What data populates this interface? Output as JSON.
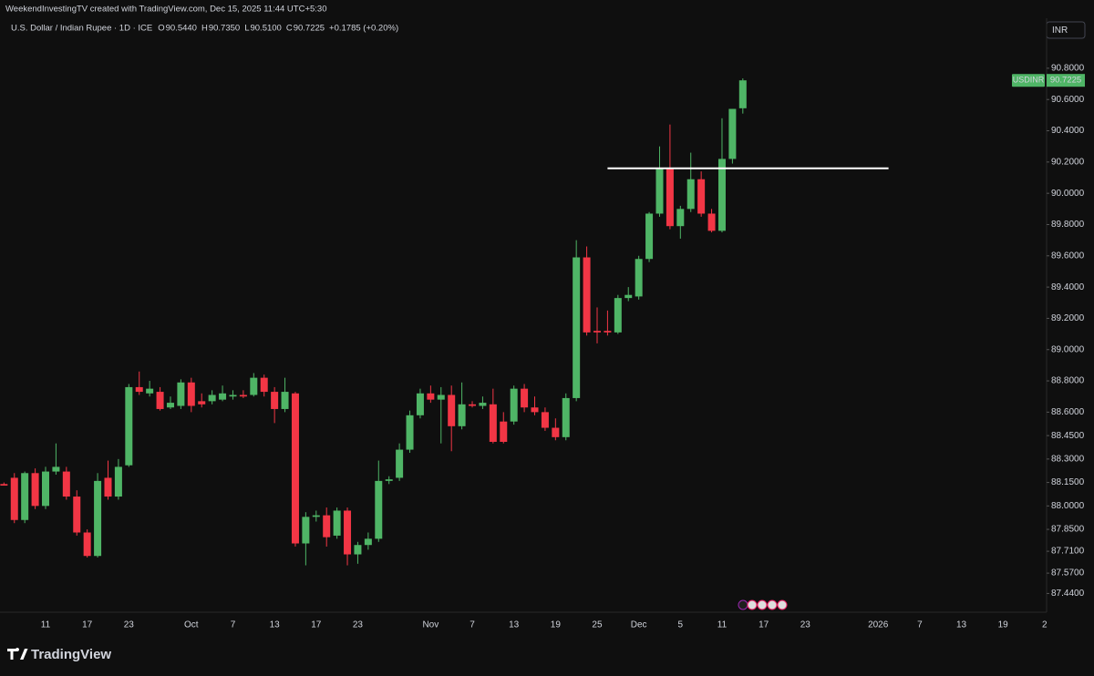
{
  "chart_data": {
    "type": "candlestick",
    "credit": "WeekendInvestingTV created with TradingView.com, Dec 15, 2025 11:44 UTC+5:30",
    "title": "U.S. Dollar / Indian Rupee · 1D · ICE",
    "ohlc_legend": [
      {
        "key": "O",
        "value": "90.5440"
      },
      {
        "key": "H",
        "value": "90.7350"
      },
      {
        "key": "L",
        "value": "90.5100"
      },
      {
        "key": "C",
        "value": "90.7225"
      }
    ],
    "change": "+0.1785 (+0.20%)",
    "currency": "INR",
    "symbol": "USDINR",
    "brand": "TradingView",
    "up_color": "#4fb566",
    "down_color": "#f23645",
    "level": {
      "value": 90.16,
      "x": [
        58,
        85
      ],
      "color": "#ffffff"
    },
    "categories": [
      null,
      null,
      null,
      null,
      "11",
      null,
      null,
      null,
      "17",
      null,
      null,
      null,
      "23",
      null,
      null,
      null,
      null,
      null,
      "Oct",
      null,
      null,
      null,
      "7",
      null,
      null,
      null,
      "13",
      null,
      null,
      null,
      "17",
      null,
      null,
      null,
      "23",
      null,
      null,
      null,
      null,
      null,
      null,
      "Nov",
      null,
      null,
      null,
      "7",
      null,
      null,
      null,
      "13",
      null,
      null,
      null,
      "19",
      null,
      null,
      null,
      "25",
      null,
      null,
      null,
      "Dec",
      null,
      null,
      null,
      "5",
      null,
      null,
      null,
      "11",
      null,
      null,
      null,
      "17",
      null,
      null,
      null,
      "23",
      null,
      null,
      null,
      null,
      null,
      null,
      "2026",
      null,
      null,
      null,
      "7",
      null,
      null,
      null,
      "13",
      null,
      null,
      null,
      "19",
      null,
      null,
      null,
      "2"
    ],
    "open": [
      88.14,
      88.18,
      87.91,
      88.21,
      88.0,
      88.22,
      88.22,
      88.06,
      87.83,
      87.68,
      88.18,
      88.06,
      88.26,
      88.76,
      88.72,
      88.73,
      88.63,
      88.64,
      88.79,
      88.67,
      88.67,
      88.68,
      88.7,
      88.71,
      88.71,
      88.82,
      88.73,
      88.62,
      88.72,
      87.76,
      87.93,
      87.94,
      87.81,
      87.97,
      87.69,
      87.75,
      87.79,
      88.16,
      88.18,
      88.36,
      88.58,
      88.72,
      88.68,
      88.71,
      88.51,
      88.65,
      88.64,
      88.65,
      88.54,
      88.54,
      88.75,
      88.63,
      88.6,
      88.5,
      88.44,
      88.69,
      89.59,
      89.12,
      89.12,
      89.11,
      89.33,
      89.34,
      89.58,
      89.87,
      90.16,
      89.79,
      89.9,
      90.09,
      89.87,
      89.76,
      90.22,
      90.544,
      null,
      null,
      null,
      null,
      null,
      null,
      null,
      null,
      null,
      null,
      null,
      null,
      null,
      null,
      null,
      null,
      null,
      null,
      null,
      null,
      null,
      null,
      null,
      null,
      null,
      null,
      null,
      null,
      null
    ],
    "high": [
      88.15,
      88.21,
      88.22,
      88.24,
      88.25,
      88.4,
      88.25,
      88.1,
      87.85,
      88.21,
      88.29,
      88.3,
      88.78,
      88.86,
      88.8,
      88.76,
      88.7,
      88.81,
      88.82,
      88.72,
      88.74,
      88.77,
      88.74,
      88.74,
      88.85,
      88.84,
      88.76,
      88.82,
      88.73,
      87.96,
      87.97,
      87.99,
      87.99,
      87.99,
      87.77,
      87.83,
      88.29,
      88.19,
      88.4,
      88.61,
      88.75,
      88.77,
      88.76,
      88.77,
      88.79,
      88.67,
      88.7,
      88.75,
      88.6,
      88.77,
      88.78,
      88.7,
      88.63,
      88.56,
      88.72,
      89.7,
      89.66,
      89.27,
      89.25,
      89.35,
      89.4,
      89.6,
      89.88,
      90.3,
      90.44,
      89.92,
      90.26,
      90.14,
      89.9,
      90.48,
      90.54,
      90.735,
      null,
      null,
      null,
      null,
      null,
      null,
      null,
      null,
      null,
      null,
      null,
      null,
      null,
      null,
      null,
      null,
      null,
      null,
      null,
      null,
      null,
      null,
      null,
      null,
      null,
      null,
      null,
      null,
      null
    ],
    "low": [
      88.13,
      87.89,
      87.89,
      87.98,
      87.98,
      88.2,
      88.04,
      87.81,
      87.67,
      87.67,
      88.04,
      88.04,
      88.25,
      88.71,
      88.7,
      88.61,
      88.62,
      88.62,
      88.6,
      88.63,
      88.65,
      88.67,
      88.68,
      88.69,
      88.7,
      88.7,
      88.53,
      88.6,
      87.74,
      87.62,
      87.9,
      87.74,
      87.79,
      87.62,
      87.63,
      87.72,
      87.77,
      88.14,
      88.16,
      88.34,
      88.56,
      88.66,
      88.4,
      88.35,
      88.49,
      88.63,
      88.62,
      88.4,
      88.4,
      88.52,
      88.6,
      88.58,
      88.48,
      88.42,
      88.42,
      88.67,
      89.09,
      89.04,
      89.09,
      89.1,
      89.31,
      89.32,
      89.56,
      89.85,
      89.77,
      89.71,
      89.88,
      89.85,
      89.75,
      89.75,
      90.19,
      90.51,
      null,
      null,
      null,
      null,
      null,
      null,
      null,
      null,
      null,
      null,
      null,
      null,
      null,
      null,
      null,
      null,
      null,
      null,
      null,
      null,
      null,
      null,
      null,
      null,
      null,
      null,
      null,
      null,
      null
    ],
    "close": [
      88.13,
      87.91,
      88.21,
      88.0,
      88.22,
      88.25,
      88.06,
      87.83,
      87.68,
      88.16,
      88.06,
      88.25,
      88.76,
      88.73,
      88.75,
      88.62,
      88.66,
      88.79,
      88.64,
      88.65,
      88.71,
      88.72,
      88.71,
      88.7,
      88.82,
      88.73,
      88.62,
      88.73,
      87.76,
      87.93,
      87.94,
      87.8,
      87.97,
      87.69,
      87.75,
      87.79,
      88.16,
      88.17,
      88.36,
      88.58,
      88.72,
      88.68,
      88.71,
      88.51,
      88.65,
      88.64,
      88.66,
      88.41,
      88.41,
      88.75,
      88.63,
      88.6,
      88.5,
      88.44,
      88.69,
      89.59,
      89.11,
      89.11,
      89.11,
      89.33,
      89.35,
      89.58,
      89.87,
      90.16,
      89.79,
      89.9,
      90.09,
      89.87,
      89.76,
      90.22,
      90.54,
      90.7225,
      null,
      null,
      null,
      null,
      null,
      null,
      null,
      null,
      null,
      null,
      null,
      null,
      null,
      null,
      null,
      null,
      null,
      null,
      null,
      null,
      null,
      null,
      null,
      null,
      null,
      null,
      null,
      null,
      null
    ],
    "ylim": [
      87.32,
      91.12
    ],
    "yticks": [
      {
        "value": 90.8,
        "label": "90.8000"
      },
      {
        "value": 90.6,
        "label": "90.6000"
      },
      {
        "value": 90.4,
        "label": "90.4000"
      },
      {
        "value": 90.2,
        "label": "90.2000"
      },
      {
        "value": 90.0,
        "label": "90.0000"
      },
      {
        "value": 89.8,
        "label": "89.8000"
      },
      {
        "value": 89.6,
        "label": "89.6000"
      },
      {
        "value": 89.4,
        "label": "89.4000"
      },
      {
        "value": 89.2,
        "label": "89.2000"
      },
      {
        "value": 89.0,
        "label": "89.0000"
      },
      {
        "value": 88.8,
        "label": "88.8000"
      },
      {
        "value": 88.6,
        "label": "88.6000"
      },
      {
        "value": 88.45,
        "label": "88.4500"
      },
      {
        "value": 88.3,
        "label": "88.3000"
      },
      {
        "value": 88.15,
        "label": "88.1500"
      },
      {
        "value": 88.0,
        "label": "88.0000"
      },
      {
        "value": 87.85,
        "label": "87.8500"
      },
      {
        "value": 87.71,
        "label": "87.7100"
      },
      {
        "value": 87.57,
        "label": "87.5700"
      },
      {
        "value": 87.44,
        "label": "87.4400"
      }
    ],
    "grid": false
  }
}
